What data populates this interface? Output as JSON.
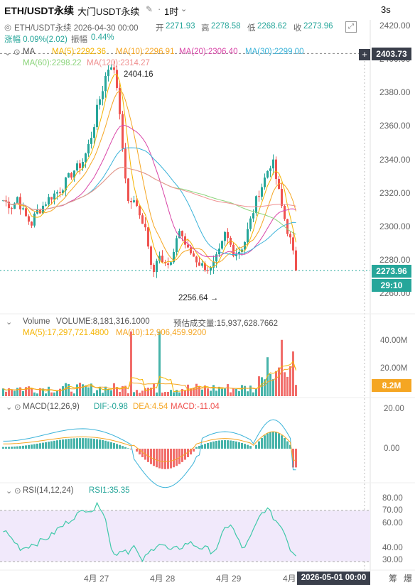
{
  "header": {
    "symbol": "ETH/USDT永续",
    "subtitle": "大门USDT永续",
    "timeframe": "1时",
    "timeframe_icon": "chevron-down-icon",
    "refresh": "3s"
  },
  "ohlc": {
    "date": "ETH/USDT永续 2026-04-30 00:00",
    "open_label": "开",
    "open": "2271.93",
    "high_label": "高",
    "high": "2278.58",
    "low_label": "低",
    "low": "2268.62",
    "close_label": "收",
    "close": "2273.96",
    "change": "涨幅 0.09%(2.02)",
    "amp_label": "振幅",
    "amp": "0.44%"
  },
  "ma": {
    "title": "MA",
    "ma5": "MA(5):2292.36",
    "ma10": "MA(10):2296.91",
    "ma20": "MA(20):2306.40",
    "ma30": "MA(30):2299.00",
    "ma60": "MA(60):2298.22",
    "ma120": "MA(120):2314.27"
  },
  "price": {
    "hi_mark": "2404.16",
    "lo_mark": "2256.64 →",
    "crosshair": "2403.73",
    "last": "2273.96",
    "countdown": "29:10",
    "axis": [
      "2420.00",
      "2400.00",
      "2380.00",
      "2360.00",
      "2340.00",
      "2320.00",
      "2300.00",
      "2280.00",
      "2260.00"
    ]
  },
  "volume": {
    "title": "Volume",
    "vol": "VOLUME:8,181,316.1000",
    "est": "预估成交量:15,937,628.7662",
    "ma5": "MA(5):17,297,721.4800",
    "ma10": "MA(10):12,906,459.9200",
    "axis": [
      "40.00M",
      "20.00M"
    ],
    "tag": "8.2M"
  },
  "macd": {
    "title": "MACD(12,26,9)",
    "dif": "DIF:-0.98",
    "dea": "DEA:4.54",
    "macd": "MACD:-11.04",
    "axis": [
      "20.00",
      "0.00"
    ]
  },
  "rsi": {
    "title": "RSI(14,12,24)",
    "rsi1": "RSI1:35.35",
    "axis": [
      "80.00",
      "70.00",
      "60.00",
      "40.00",
      "30.00"
    ]
  },
  "xaxis": {
    "labels": [
      "4月 27",
      "4月 28",
      "4月 29",
      "4月"
    ],
    "current": "2026-05-01 00:00",
    "btn1": "筹",
    "btn2": "爆"
  },
  "colors": {
    "up": "#26a69a",
    "down": "#ef5350",
    "ma5": "#f5b400",
    "ma10": "#f5a623",
    "ma20": "#d946a8",
    "ma30": "#3bb3d9",
    "ma60": "#8bd47b",
    "ma120": "#ef8f8f",
    "accent": "#f5a623"
  },
  "chart_data": {
    "type": "candlestick",
    "title": "ETH/USDT永续",
    "interval": "1时",
    "ylim": [
      2255,
      2420
    ],
    "x_labels": [
      "4月 27",
      "4月 28",
      "4月 29",
      "4月"
    ],
    "highlights": {
      "high": 2404.16,
      "low": 2256.64,
      "last": 2273.96
    },
    "close_path": [
      2316,
      2314,
      2312,
      2318,
      2310,
      2305,
      2302,
      2309,
      2311,
      2315,
      2318,
      2320,
      2322,
      2326,
      2330,
      2334,
      2336,
      2340,
      2348,
      2358,
      2372,
      2382,
      2394,
      2398,
      2386,
      2360,
      2322,
      2312,
      2318,
      2305,
      2300,
      2282,
      2274,
      2286,
      2280,
      2276,
      2280,
      2300,
      2294,
      2286,
      2284,
      2280,
      2277,
      2276,
      2274,
      2280,
      2286,
      2296,
      2290,
      2284,
      2286,
      2290,
      2300,
      2310,
      2320,
      2326,
      2334,
      2340,
      2326,
      2312,
      2300,
      2290,
      2274
    ],
    "rsi_path": [
      55,
      50,
      45,
      40,
      42,
      44,
      45,
      48,
      50,
      55,
      58,
      62,
      66,
      68,
      72,
      70,
      75,
      68,
      40,
      36,
      40,
      38,
      42,
      30,
      34,
      40,
      45,
      42,
      38,
      40,
      42,
      45,
      43,
      41,
      40,
      38,
      42,
      55,
      60,
      50,
      40,
      45,
      55,
      66,
      72,
      66,
      60,
      55,
      40,
      36
    ]
  }
}
